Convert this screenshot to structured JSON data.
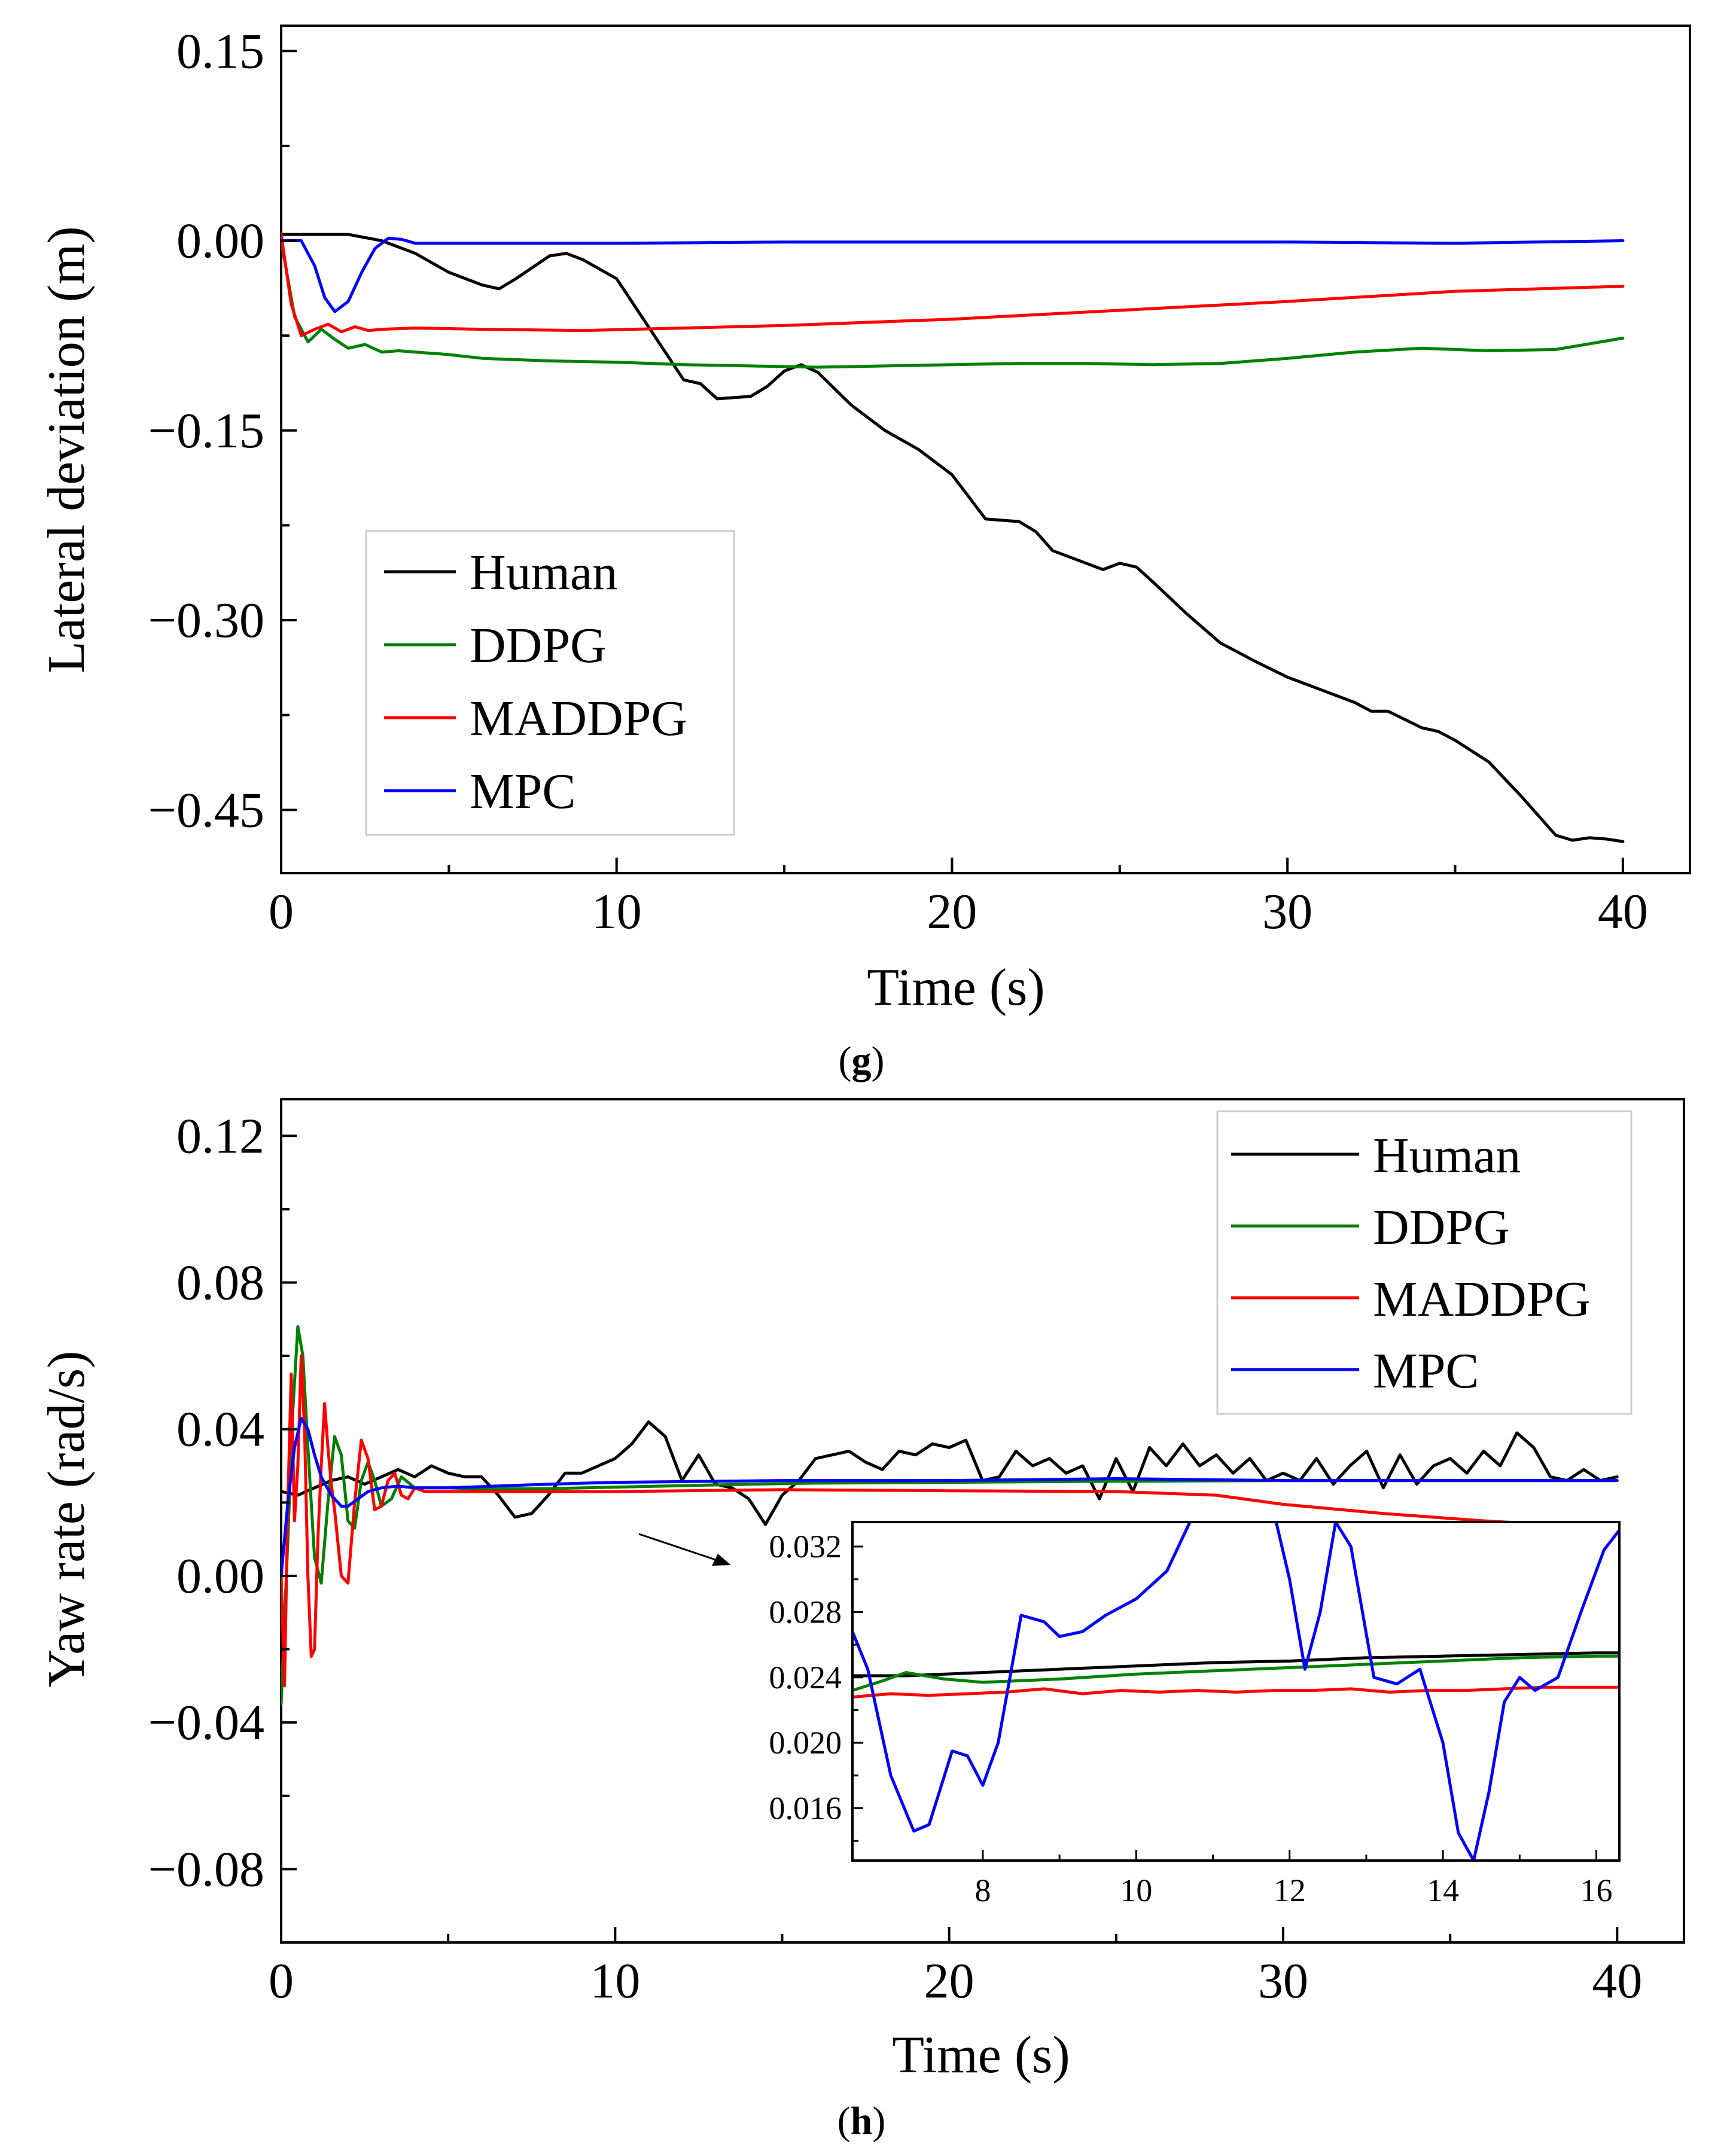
{
  "chart_data": [
    {
      "type": "line",
      "panel_label": "g",
      "xlabel": "Time (s)",
      "ylabel": "Lateral deviation (m)",
      "xlim": [
        0,
        42
      ],
      "ylim": [
        -0.5,
        0.17
      ],
      "xticks": [
        0,
        10,
        20,
        30,
        40
      ],
      "xtick_labels": [
        "0",
        "10",
        "20",
        "30",
        "40"
      ],
      "yticks": [
        0.15,
        0.0,
        -0.15,
        -0.3,
        -0.45
      ],
      "ytick_labels": [
        "0.15",
        "0.00",
        "−0.15",
        "−0.30",
        "−0.45"
      ],
      "legend_position": "bottom-left",
      "grid": false,
      "series": [
        {
          "name": "Human",
          "color": "#000000",
          "x": [
            0,
            1,
            2,
            3,
            4,
            5,
            6,
            6.5,
            7,
            8,
            8.5,
            9,
            10,
            11,
            12,
            12.5,
            13,
            14,
            14.5,
            15,
            15.5,
            16,
            17,
            18,
            19,
            20,
            21,
            22,
            22.5,
            23,
            24,
            24.5,
            25,
            25.5,
            26,
            27,
            28,
            29,
            30,
            30.5,
            31,
            32,
            32.5,
            33,
            34,
            34.5,
            35,
            36,
            37,
            38,
            38.5,
            39,
            39.5,
            40
          ],
          "y": [
            0.005,
            0.005,
            0.005,
            0.0,
            -0.01,
            -0.025,
            -0.035,
            -0.038,
            -0.03,
            -0.012,
            -0.01,
            -0.015,
            -0.03,
            -0.07,
            -0.11,
            -0.113,
            -0.125,
            -0.123,
            -0.115,
            -0.103,
            -0.098,
            -0.104,
            -0.13,
            -0.15,
            -0.165,
            -0.185,
            -0.22,
            -0.222,
            -0.23,
            -0.245,
            -0.255,
            -0.26,
            -0.255,
            -0.258,
            -0.27,
            -0.295,
            -0.318,
            -0.332,
            -0.345,
            -0.35,
            -0.355,
            -0.365,
            -0.372,
            -0.372,
            -0.385,
            -0.388,
            -0.395,
            -0.412,
            -0.44,
            -0.47,
            -0.474,
            -0.472,
            -0.473,
            -0.475
          ]
        },
        {
          "name": "DDPG",
          "color": "#008000",
          "x": [
            0,
            0.4,
            0.8,
            1.2,
            1.6,
            2,
            2.5,
            3,
            3.5,
            4,
            5,
            6,
            8,
            10,
            12,
            14,
            16,
            18,
            20,
            22,
            24,
            26,
            28,
            30,
            32,
            34,
            36,
            38,
            40
          ],
          "y": [
            0.0,
            -0.06,
            -0.08,
            -0.07,
            -0.078,
            -0.085,
            -0.082,
            -0.088,
            -0.087,
            -0.088,
            -0.09,
            -0.093,
            -0.095,
            -0.096,
            -0.098,
            -0.099,
            -0.1,
            -0.099,
            -0.098,
            -0.097,
            -0.097,
            -0.098,
            -0.097,
            -0.093,
            -0.088,
            -0.085,
            -0.087,
            -0.086,
            -0.077
          ]
        },
        {
          "name": "MADDPG",
          "color": "#ff0000",
          "x": [
            0,
            0.3,
            0.6,
            1.0,
            1.4,
            1.8,
            2.2,
            2.6,
            3,
            4,
            6,
            9,
            12,
            15,
            20,
            25,
            30,
            35,
            40
          ],
          "y": [
            0.005,
            -0.05,
            -0.075,
            -0.07,
            -0.066,
            -0.072,
            -0.068,
            -0.071,
            -0.07,
            -0.069,
            -0.07,
            -0.071,
            -0.069,
            -0.067,
            -0.062,
            -0.055,
            -0.048,
            -0.04,
            -0.036
          ]
        },
        {
          "name": "MPC",
          "color": "#0000ff",
          "x": [
            0,
            0.6,
            1.0,
            1.3,
            1.6,
            2.0,
            2.4,
            2.8,
            3.2,
            3.6,
            4,
            5,
            10,
            15,
            20,
            25,
            30,
            35,
            40
          ],
          "y": [
            0.0,
            0.0,
            -0.02,
            -0.045,
            -0.056,
            -0.048,
            -0.025,
            -0.006,
            0.002,
            0.001,
            -0.002,
            -0.002,
            -0.002,
            -0.001,
            -0.001,
            -0.001,
            -0.001,
            -0.002,
            0.0
          ]
        }
      ]
    },
    {
      "type": "line",
      "panel_label": "h",
      "xlabel": "Time (s)",
      "ylabel": "Yaw rate (rad/s)",
      "xlim": [
        0,
        42
      ],
      "ylim": [
        -0.1,
        0.13
      ],
      "xticks": [
        0,
        10,
        20,
        30,
        40
      ],
      "xtick_labels": [
        "0",
        "10",
        "20",
        "30",
        "40"
      ],
      "yticks": [
        0.12,
        0.08,
        0.04,
        0.0,
        -0.04,
        -0.08
      ],
      "ytick_labels": [
        "0.12",
        "0.08",
        "0.04",
        "0.00",
        "−0.04",
        "−0.08"
      ],
      "legend_position": "top-right",
      "grid": false,
      "series": [
        {
          "name": "Human",
          "color": "#000000",
          "x": [
            0,
            0.5,
            1,
            1.5,
            2,
            2.5,
            3,
            3.5,
            4,
            4.5,
            5,
            5.5,
            6,
            6.5,
            7,
            7.5,
            8,
            8.5,
            9,
            9.5,
            10,
            10.5,
            11,
            11.5,
            12,
            12.5,
            13,
            13.5,
            14,
            14.5,
            15,
            15.5,
            16,
            16.5,
            17,
            17.5,
            18,
            18.5,
            19,
            19.5,
            20,
            20.5,
            21,
            21.5,
            22,
            22.5,
            23,
            23.5,
            24,
            24.5,
            25,
            25.5,
            26,
            26.5,
            27,
            27.5,
            28,
            28.5,
            29,
            29.5,
            30,
            30.5,
            31,
            31.5,
            32,
            32.5,
            33,
            33.5,
            34,
            34.5,
            35,
            35.5,
            36,
            36.5,
            37,
            37.5,
            38,
            38.5,
            39,
            39.5,
            40
          ],
          "y": [
            0.023,
            0.022,
            0.024,
            0.026,
            0.027,
            0.025,
            0.027,
            0.029,
            0.027,
            0.03,
            0.028,
            0.027,
            0.027,
            0.022,
            0.016,
            0.017,
            0.022,
            0.028,
            0.028,
            0.03,
            0.032,
            0.036,
            0.042,
            0.038,
            0.026,
            0.033,
            0.025,
            0.024,
            0.021,
            0.014,
            0.022,
            0.026,
            0.032,
            0.033,
            0.034,
            0.031,
            0.029,
            0.034,
            0.033,
            0.036,
            0.035,
            0.037,
            0.026,
            0.027,
            0.034,
            0.03,
            0.032,
            0.028,
            0.03,
            0.021,
            0.032,
            0.023,
            0.035,
            0.03,
            0.036,
            0.03,
            0.033,
            0.028,
            0.032,
            0.026,
            0.028,
            0.026,
            0.032,
            0.025,
            0.03,
            0.034,
            0.024,
            0.033,
            0.025,
            0.03,
            0.032,
            0.028,
            0.034,
            0.03,
            0.039,
            0.035,
            0.027,
            0.026,
            0.029,
            0.026,
            0.027
          ]
        },
        {
          "name": "DDPG",
          "color": "#008000",
          "x": [
            0,
            0.2,
            0.35,
            0.5,
            0.65,
            0.8,
            1.0,
            1.2,
            1.4,
            1.6,
            1.8,
            2.0,
            2.2,
            2.4,
            2.6,
            2.8,
            3.0,
            3.3,
            3.6,
            4.0,
            4.5,
            5,
            6,
            8,
            10,
            14,
            16,
            20,
            25,
            30,
            35,
            40
          ],
          "y": [
            -0.035,
            0.01,
            0.045,
            0.068,
            0.06,
            0.035,
            0.005,
            -0.002,
            0.02,
            0.038,
            0.033,
            0.015,
            0.013,
            0.026,
            0.031,
            0.026,
            0.019,
            0.021,
            0.027,
            0.024,
            0.024,
            0.024,
            0.0237,
            0.0238,
            0.0242,
            0.025,
            0.0253,
            0.0255,
            0.0258,
            0.026,
            0.026,
            0.026
          ]
        },
        {
          "name": "MADDPG",
          "color": "#ff0000",
          "x": [
            0,
            0.1,
            0.2,
            0.3,
            0.4,
            0.5,
            0.6,
            0.7,
            0.8,
            0.9,
            1.0,
            1.1,
            1.2,
            1.3,
            1.4,
            1.5,
            1.6,
            1.8,
            2.0,
            2.2,
            2.4,
            2.6,
            2.8,
            3.0,
            3.2,
            3.4,
            3.6,
            3.8,
            4.0,
            4.3,
            4.6,
            5,
            6,
            8,
            10,
            15,
            20,
            25,
            28,
            30,
            33,
            36,
            38,
            40
          ],
          "y": [
            0.0,
            -0.03,
            0.02,
            0.055,
            0.015,
            0.03,
            0.06,
            0.04,
            0.0,
            -0.022,
            -0.02,
            0.01,
            0.03,
            0.047,
            0.035,
            0.025,
            0.018,
            0.0,
            -0.002,
            0.02,
            0.037,
            0.032,
            0.018,
            0.019,
            0.026,
            0.028,
            0.022,
            0.021,
            0.024,
            0.023,
            0.023,
            0.023,
            0.023,
            0.023,
            0.023,
            0.0235,
            0.0232,
            0.023,
            0.022,
            0.0195,
            0.017,
            0.015,
            0.014,
            0.014
          ]
        },
        {
          "name": "MPC",
          "color": "#0000ff",
          "x": [
            0,
            0.2,
            0.4,
            0.6,
            0.8,
            1.0,
            1.2,
            1.5,
            1.8,
            2.0,
            2.3,
            2.6,
            3.0,
            3.5,
            4,
            5,
            8,
            10,
            15,
            20,
            25,
            30,
            35,
            40
          ],
          "y": [
            0.0,
            0.02,
            0.035,
            0.043,
            0.04,
            0.033,
            0.027,
            0.022,
            0.019,
            0.019,
            0.021,
            0.023,
            0.024,
            0.0245,
            0.024,
            0.024,
            0.025,
            0.0255,
            0.026,
            0.026,
            0.0265,
            0.026,
            0.026,
            0.026
          ]
        }
      ],
      "inset": {
        "xlim": [
          6.3,
          16.3
        ],
        "ylim": [
          0.0128,
          0.0335
        ],
        "xticks": [
          8,
          10,
          12,
          14,
          16
        ],
        "xtick_labels": [
          "8",
          "10",
          "12",
          "14",
          "16"
        ],
        "yticks": [
          0.032,
          0.028,
          0.024,
          0.02,
          0.016
        ],
        "ytick_labels": [
          "0.032",
          "0.028",
          "0.024",
          "0.020",
          "0.016"
        ],
        "series": [
          {
            "name": "Human",
            "color": "#000000",
            "x": [
              6.3,
              7,
              8,
              9,
              10,
              11,
              12,
              13,
              14,
              15,
              16,
              16.3
            ],
            "y": [
              0.0241,
              0.0241,
              0.0243,
              0.0245,
              0.0247,
              0.0249,
              0.025,
              0.0252,
              0.0253,
              0.0254,
              0.0255,
              0.0255
            ]
          },
          {
            "name": "DDPG",
            "color": "#008000",
            "x": [
              6.3,
              6.7,
              7.0,
              7.5,
              8.0,
              9,
              10,
              11,
              12,
              13,
              14,
              15,
              16,
              16.3
            ],
            "y": [
              0.0232,
              0.0238,
              0.0243,
              0.0239,
              0.0237,
              0.0239,
              0.0242,
              0.0244,
              0.0246,
              0.0248,
              0.025,
              0.0252,
              0.0253,
              0.0253
            ]
          },
          {
            "name": "MADDPG",
            "color": "#ff0000",
            "x": [
              6.3,
              6.8,
              7.3,
              7.8,
              8.3,
              8.8,
              9.3,
              9.8,
              10.3,
              10.8,
              11.3,
              11.8,
              12.3,
              12.8,
              13.3,
              13.8,
              14.3,
              14.8,
              15.3,
              15.8,
              16.3
            ],
            "y": [
              0.0228,
              0.023,
              0.0229,
              0.023,
              0.0231,
              0.0233,
              0.023,
              0.0232,
              0.0231,
              0.0232,
              0.0231,
              0.0232,
              0.0232,
              0.0233,
              0.0231,
              0.0232,
              0.0232,
              0.0233,
              0.0234,
              0.0234,
              0.0234
            ]
          },
          {
            "name": "MPC",
            "color": "#0000ff",
            "x": [
              6.3,
              6.5,
              6.8,
              7.1,
              7.3,
              7.6,
              7.8,
              8.0,
              8.2,
              8.5,
              8.8,
              9.0,
              9.3,
              9.6,
              10.0,
              10.4,
              10.7,
              11.0,
              11.8,
              12.0,
              12.2,
              12.4,
              12.6,
              12.8,
              13.1,
              13.4,
              13.7,
              14.0,
              14.2,
              14.4,
              14.6,
              14.8,
              15.0,
              15.2,
              15.5,
              15.8,
              16.1,
              16.3
            ],
            "y": [
              0.0268,
              0.0245,
              0.018,
              0.0146,
              0.015,
              0.0195,
              0.0192,
              0.0174,
              0.02,
              0.0278,
              0.0274,
              0.0265,
              0.0268,
              0.0278,
              0.0288,
              0.0305,
              0.0335,
              0.034,
              0.034,
              0.03,
              0.0245,
              0.028,
              0.0335,
              0.032,
              0.024,
              0.0236,
              0.0245,
              0.02,
              0.0145,
              0.0128,
              0.017,
              0.0225,
              0.024,
              0.0232,
              0.024,
              0.028,
              0.0318,
              0.033
            ]
          }
        ]
      }
    }
  ]
}
